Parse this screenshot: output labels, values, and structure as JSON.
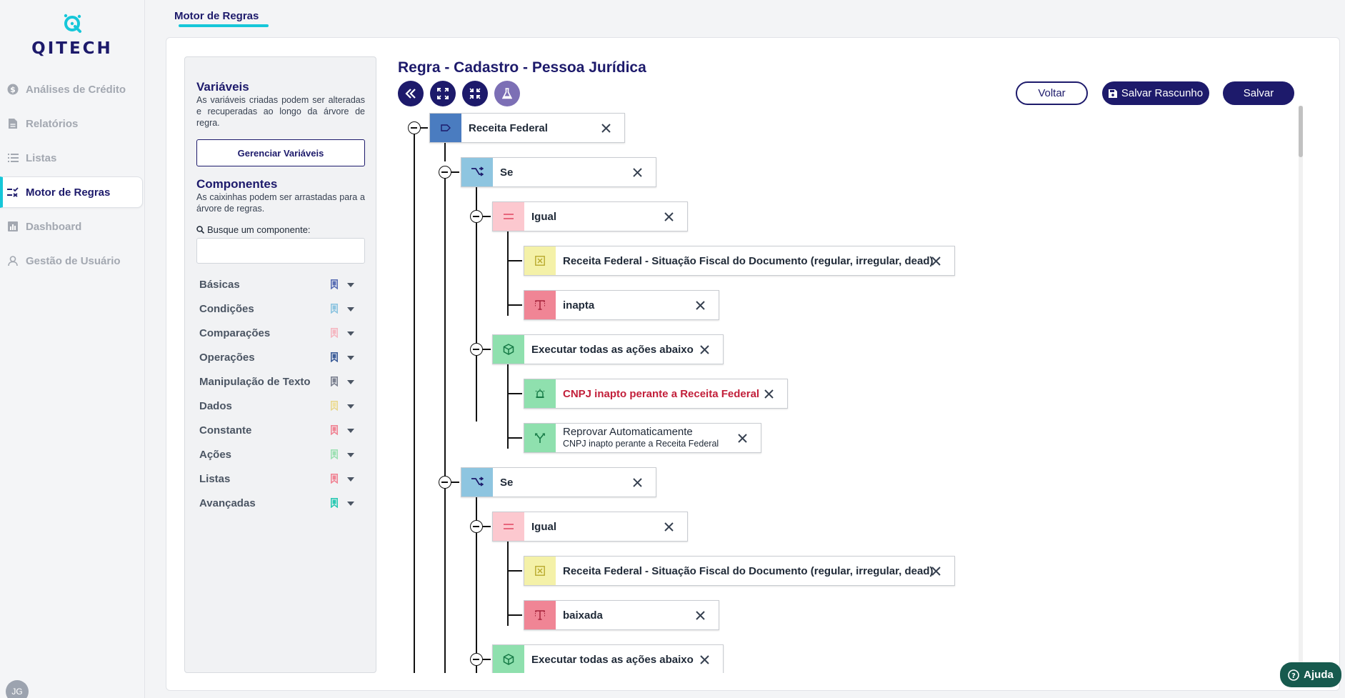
{
  "app": {
    "logo_text": "QITECH",
    "avatar_initials": "JG"
  },
  "sidebar": {
    "items": [
      {
        "label": "Análises de Crédito",
        "icon": "dollar-icon"
      },
      {
        "label": "Relatórios",
        "icon": "document-icon"
      },
      {
        "label": "Listas",
        "icon": "list-icon"
      },
      {
        "label": "Motor de Regras",
        "icon": "rules-icon",
        "active": true
      },
      {
        "label": "Dashboard",
        "icon": "chart-icon"
      },
      {
        "label": "Gestão de Usuário",
        "icon": "user-icon"
      }
    ]
  },
  "header": {
    "tab": "Motor de Regras"
  },
  "panel": {
    "vars_title": "Variáveis",
    "vars_desc": "As variáveis criadas podem ser alteradas e recuperadas ao longo da árvore de regra.",
    "vars_button": "Gerenciar Variáveis",
    "comp_title": "Componentes",
    "comp_desc": "As caixinhas podem ser arrastadas para a árvore de regras.",
    "search_label": "Busque um componente:",
    "search_value": "",
    "categories": [
      {
        "label": "Básicas",
        "color": "#5b6fb5"
      },
      {
        "label": "Condições",
        "color": "#8ec5e0"
      },
      {
        "label": "Comparações",
        "color": "#f5b8c2"
      },
      {
        "label": "Operações",
        "color": "#3f5f9a"
      },
      {
        "label": "Manipulação de Texto",
        "color": "#7b8190"
      },
      {
        "label": "Dados",
        "color": "#f0e2a3"
      },
      {
        "label": "Constante",
        "color": "#f08595"
      },
      {
        "label": "Ações",
        "color": "#9ee0b4"
      },
      {
        "label": "Listas",
        "color": "#f08595"
      },
      {
        "label": "Avançadas",
        "color": "#2cc9b3"
      }
    ]
  },
  "rule": {
    "title": "Regra - Cadastro - Pessoa Jurídica",
    "buttons": {
      "back": "Voltar",
      "draft": "Salvar Rascunho",
      "save": "Salvar"
    },
    "nodes": {
      "root": "Receita Federal",
      "if1": "Se",
      "eq1": "Igual",
      "var1": "Receita Federal - Situação Fiscal do Documento (regular, irregular, dead)",
      "const1": "inapta",
      "exec1": "Executar todas as ações abaixo",
      "alert1": "CNPJ inapto perante a Receita Federal",
      "reject1_title": "Reprovar Automaticamente",
      "reject1_sub": "CNPJ inapto perante a Receita Federal",
      "if2": "Se",
      "eq2": "Igual",
      "var2": "Receita Federal - Situação Fiscal do Documento (regular, irregular, dead)",
      "const2": "baixada",
      "exec2": "Executar todas as ações abaixo"
    }
  },
  "colors": {
    "primary": "#1d1a6b",
    "accent": "#16c7d9",
    "alert_text": "#c21f3a",
    "root_icon": "#4a7cc0",
    "if_icon": "#8ec5e0",
    "eq_icon": "#fcc8cf",
    "var_icon": "#f4f1a8",
    "const_icon": "#f08595",
    "exec_icon": "#8fe0ae",
    "help_bg": "#175a4e"
  },
  "help": {
    "label": "Ajuda"
  }
}
